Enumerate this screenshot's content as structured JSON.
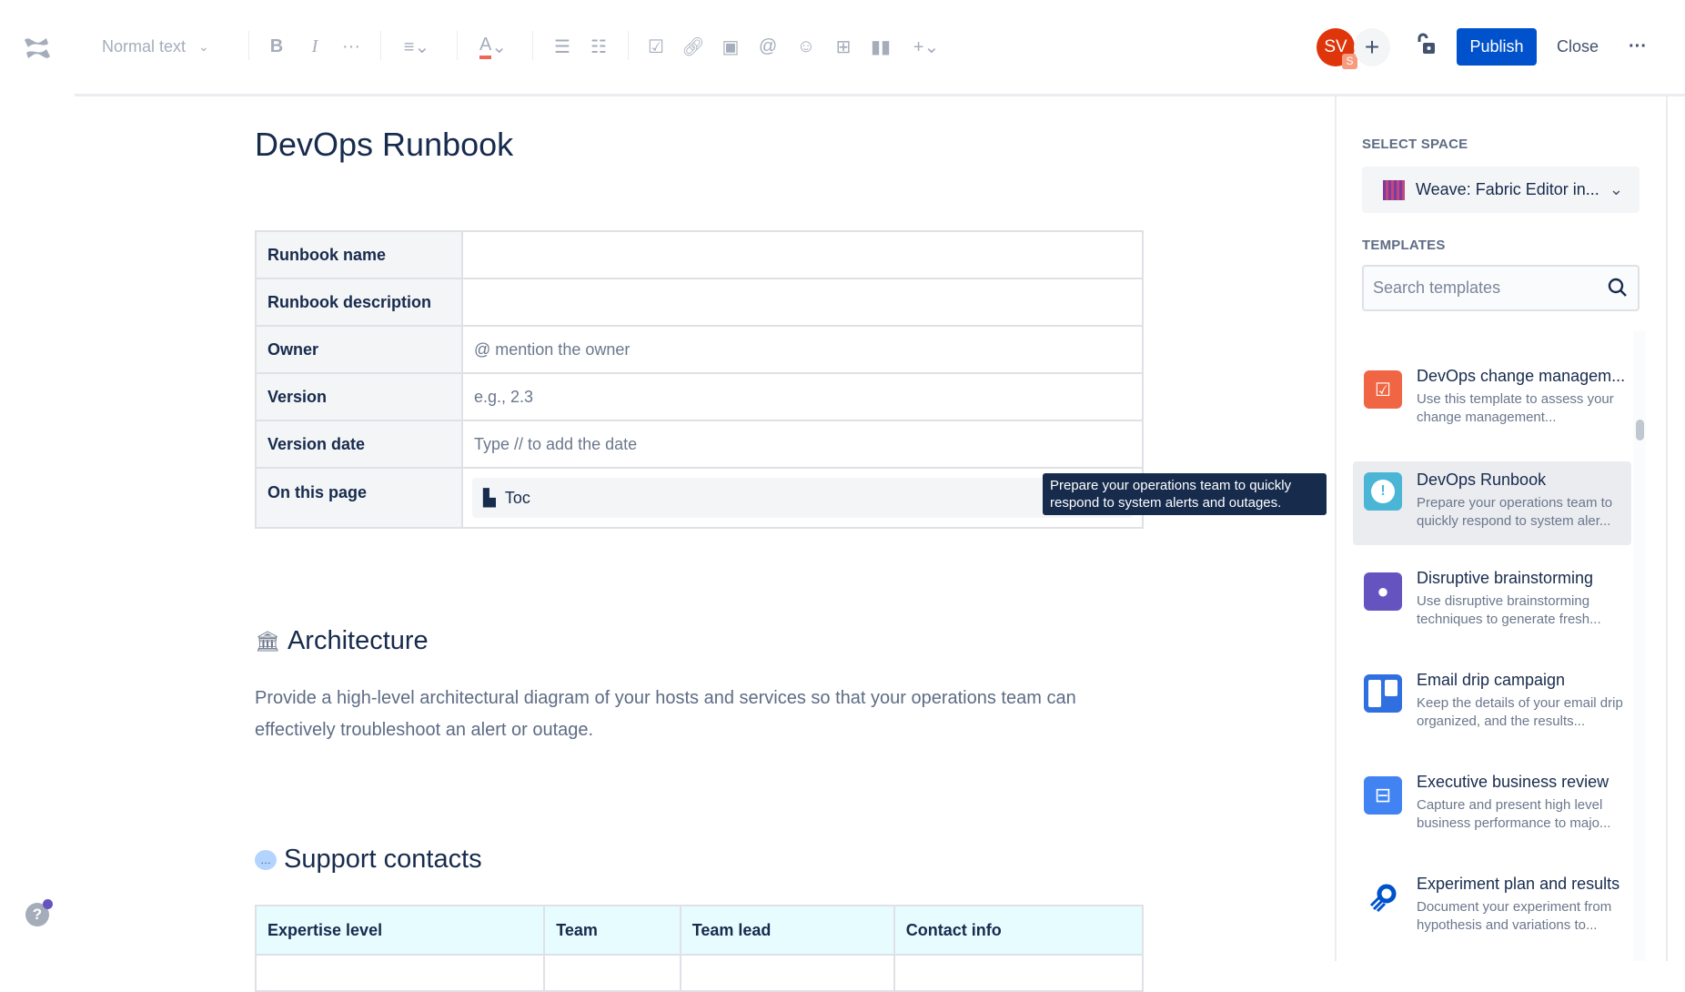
{
  "toolbar": {
    "text_style": "Normal text",
    "avatar_initials": "SV",
    "avatar_badge": "S",
    "publish": "Publish",
    "close": "Close",
    "accent": "#0052cc"
  },
  "page": {
    "title": "DevOps Runbook",
    "meta_rows": [
      {
        "key": "Runbook name",
        "value": ""
      },
      {
        "key": "Runbook description",
        "value": ""
      },
      {
        "key": "Owner",
        "value": "@ mention the owner"
      },
      {
        "key": "Version",
        "value": "e.g., 2.3"
      },
      {
        "key": "Version date",
        "value": "Type // to add the date"
      },
      {
        "key": "On this page",
        "value": "Toc"
      }
    ],
    "architecture": {
      "heading": "Architecture",
      "text": "Provide a high-level architectural diagram of your hosts and services so that your operations team can effectively troubleshoot an alert or outage."
    },
    "support": {
      "heading": "Support contacts",
      "columns": [
        "Expertise level",
        "Team",
        "Team lead",
        "Contact info"
      ]
    }
  },
  "panel": {
    "select_space_label": "SELECT SPACE",
    "space": "Weave: Fabric Editor in...",
    "templates_label": "TEMPLATES",
    "search_placeholder": "Search templates",
    "templates": [
      {
        "title": "DevOps change managem...",
        "desc": "Use this template to assess your change management...",
        "color": "#f06543",
        "icon": "checklist-icon"
      },
      {
        "title": "DevOps Runbook",
        "desc": "Prepare your operations team to quickly respond to system aler...",
        "color": "#4bb5d6",
        "icon": "alert-icon"
      },
      {
        "title": "Disruptive brainstorming",
        "desc": "Use disruptive brainstorming techniques to generate fresh...",
        "color": "#6554c0",
        "icon": "lightbulb-icon"
      },
      {
        "title": "Email drip campaign",
        "desc": "Keep the details of your email drip organized, and the results...",
        "color": "#2f6fe0",
        "icon": "board-icon"
      },
      {
        "title": "Executive business review",
        "desc": "Capture and present high level business performance to majo...",
        "color": "#4183f2",
        "icon": "briefcase-icon"
      },
      {
        "title": "Experiment plan and results",
        "desc": "Document your experiment from hypothesis and variations to...",
        "color": "#ffffff",
        "icon": "rocket-icon"
      }
    ],
    "tooltip": "Prepare your operations team to quickly respond to system alerts and outages."
  }
}
